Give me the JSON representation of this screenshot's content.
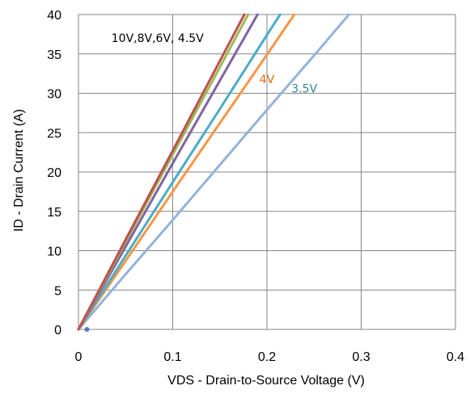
{
  "chart_data": {
    "type": "line",
    "title": "",
    "xlabel": "VDS - Drain-to-Source Voltage (V)",
    "ylabel": "ID - Drain Current (A)",
    "xlim": [
      0,
      0.4
    ],
    "ylim": [
      0,
      40
    ],
    "x_ticks": [
      "0",
      "0.1",
      "0.2",
      "0.3",
      "0.4"
    ],
    "y_ticks": [
      "0",
      "5",
      "10",
      "15",
      "20",
      "25",
      "30",
      "35",
      "40"
    ],
    "grid": true,
    "legend": "none",
    "series": [
      {
        "color": "#c0504d",
        "x": [
          0,
          0.05,
          0.1,
          0.15,
          0.176
        ],
        "y": [
          0,
          11.4,
          22.7,
          34.1,
          40
        ]
      },
      {
        "color": "#9bbb59",
        "x": [
          0,
          0.05,
          0.1,
          0.15,
          0.18
        ],
        "y": [
          0,
          11.1,
          22.2,
          33.3,
          40
        ]
      },
      {
        "color": "#8064a2",
        "x": [
          0,
          0.05,
          0.1,
          0.15,
          0.19
        ],
        "y": [
          0,
          10.5,
          21.1,
          31.6,
          40
        ]
      },
      {
        "color": "#4bacc6",
        "x": [
          0,
          0.05,
          0.1,
          0.15,
          0.2,
          0.214
        ],
        "y": [
          0,
          9.35,
          18.7,
          28.0,
          37.4,
          40
        ]
      },
      {
        "color": "#f79646",
        "x": [
          0,
          0.05,
          0.1,
          0.15,
          0.2,
          0.229
        ],
        "y": [
          0,
          8.7,
          17.5,
          26.2,
          34.9,
          40
        ]
      },
      {
        "color": "#95b3d7",
        "x": [
          0,
          0.05,
          0.1,
          0.15,
          0.2,
          0.25,
          0.287
        ],
        "y": [
          0,
          7.0,
          13.9,
          20.9,
          27.9,
          34.8,
          40
        ]
      }
    ],
    "annotations": [
      {
        "text": "10V,8V,6V, 4.5V",
        "x": 0.035,
        "y": 36.5,
        "color": "#000000"
      },
      {
        "text": "4V",
        "x": 0.192,
        "y": 31.3,
        "color": "#e46c0a"
      },
      {
        "text": "3.5V",
        "x": 0.226,
        "y": 30.1,
        "color": "#31849b"
      }
    ],
    "markers": [
      {
        "x": 0.009,
        "y": 0,
        "color": "#4f81bd"
      }
    ]
  }
}
